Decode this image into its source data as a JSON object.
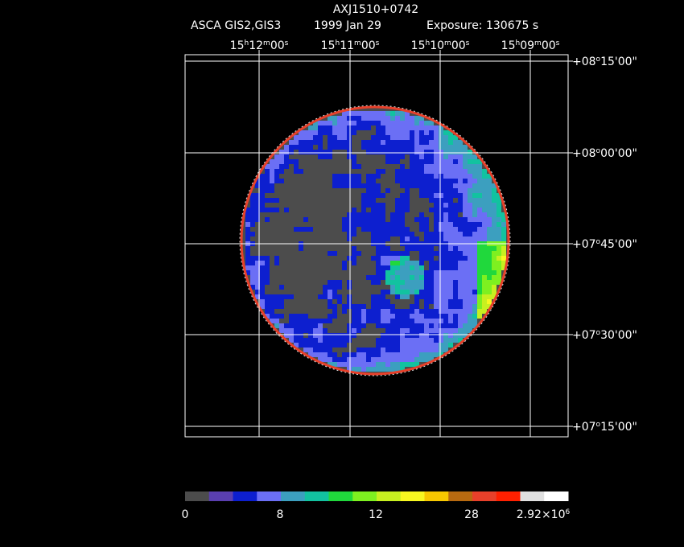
{
  "header": {
    "title": "AXJ1510+0742",
    "instrument": "ASCA GIS2,GIS3",
    "date": "1999 Jan 29",
    "exposure": "Exposure: 130675 s"
  },
  "ra_labels": [
    [
      "15",
      "h",
      "12",
      "m",
      "00",
      "s"
    ],
    [
      "15",
      "h",
      "11",
      "m",
      "00",
      "s"
    ],
    [
      "15",
      "h",
      "10",
      "m",
      "00",
      "s"
    ],
    [
      "15",
      "h",
      "09",
      "m",
      "00",
      "s"
    ]
  ],
  "dec_labels": [
    [
      "+08",
      "o",
      "15'00\""
    ],
    [
      "+08",
      "o",
      "00'00\""
    ],
    [
      "+07",
      "o",
      "45'00\""
    ],
    [
      "+07",
      "o",
      "30'00\""
    ],
    [
      "+07",
      "o",
      "15'00\""
    ]
  ],
  "colorbar": {
    "colors": [
      "#4c4c4c",
      "#5a3fb0",
      "#0d1fcf",
      "#6b6ff5",
      "#3c9fbf",
      "#12c2a0",
      "#20d83c",
      "#7ef020",
      "#c8f020",
      "#f8f820",
      "#f8c800",
      "#b86a10",
      "#e8402a",
      "#ff2000",
      "#e0e0e0",
      "#ffffff"
    ],
    "labels": [
      [
        "0"
      ],
      [
        "8"
      ],
      [
        "12"
      ],
      [
        "28"
      ],
      [
        "2.92×10",
        "6"
      ]
    ]
  }
}
